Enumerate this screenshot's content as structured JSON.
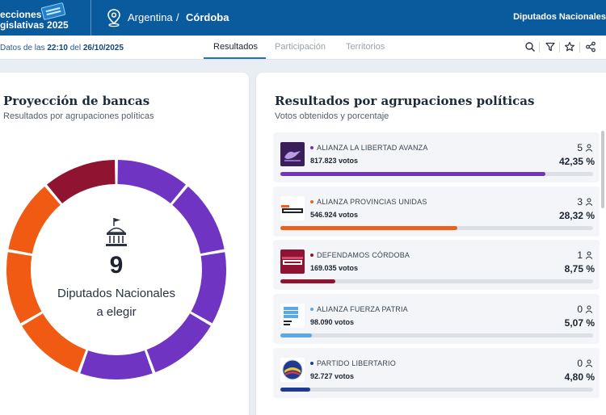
{
  "header": {
    "brand_line1": "ecciones",
    "brand_line2": "gislativas 2025",
    "breadcrumb_country": "Argentina",
    "breadcrumb_separator": "/",
    "breadcrumb_province": "Córdoba",
    "category": "Diputados Nacionales"
  },
  "subnav": {
    "stamp_prefix": "Datos de las",
    "stamp_time": "22:10",
    "stamp_mid": "del",
    "stamp_date": "26/10/2025",
    "tabs": [
      {
        "label": "Resultados",
        "active": true
      },
      {
        "label": "Participación",
        "active": false
      },
      {
        "label": "Territorios",
        "active": false
      }
    ],
    "tools": [
      "search-icon",
      "filter-icon",
      "star-icon",
      "share-icon"
    ]
  },
  "seats_card": {
    "title": "Proyección de bancas",
    "subtitle": "Resultados por agrupaciones políticas",
    "total_seats": "9",
    "caption_line1": "Diputados Nacionales",
    "caption_line2": "a elegir",
    "segments": [
      {
        "party": "ALIANZA LA LIBERTAD AVANZA",
        "seats": 5,
        "color": "#6f35c2"
      },
      {
        "party": "ALIANZA PROVINCIAS UNIDAS",
        "seats": 3,
        "color": "#f05a12"
      },
      {
        "party": "DEFENDAMOS CÓRDOBA",
        "seats": 1,
        "color": "#8f1431"
      }
    ]
  },
  "results_card": {
    "title": "Resultados por agrupaciones políticas",
    "subtitle": "Votos obtenidos y porcentaje",
    "parties": [
      {
        "name": "ALIANZA LA LIBERTAD AVANZA",
        "votes": "817.823 votos",
        "seats": "5",
        "percent": "42,35 %",
        "share": 42.35,
        "color": "#6f35c2",
        "logo": "lla-logo"
      },
      {
        "name": "ALIANZA PROVINCIAS UNIDAS",
        "votes": "546.924 votos",
        "seats": "3",
        "percent": "28,32 %",
        "share": 28.32,
        "color": "#e8641e",
        "logo": "provincias-unidas-logo"
      },
      {
        "name": "DEFENDAMOS CÓRDOBA",
        "votes": "169.035 votos",
        "seats": "1",
        "percent": "8,75 %",
        "share": 8.75,
        "color": "#8f1431",
        "logo": "defendamos-cordoba-logo"
      },
      {
        "name": "ALIANZA FUERZA PATRIA",
        "votes": "98.090 votos",
        "seats": "0",
        "percent": "5,07 %",
        "share": 5.07,
        "color": "#5aa9e6",
        "logo": "fuerza-patria-logo"
      },
      {
        "name": "PARTIDO LIBERTARIO",
        "votes": "92.727 votos",
        "seats": "0",
        "percent": "4,80 %",
        "share": 4.8,
        "color": "#1f3a93",
        "logo": "partido-libertario-logo"
      }
    ]
  }
}
